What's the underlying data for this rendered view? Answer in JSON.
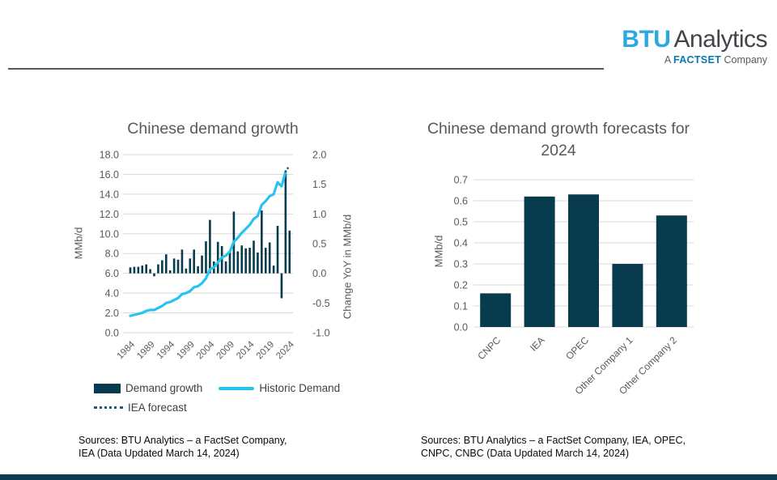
{
  "logo": {
    "btu": "BTU",
    "analytics": "Analytics",
    "tagline_prefix": "A",
    "tagline_brand": "FACTSET",
    "tagline_suffix": "Company"
  },
  "colors": {
    "bar_dark_teal": "#073B4D",
    "historic_line_cyan": "#29C3F0",
    "forecast_dots_navy": "#1E5A78",
    "title_gray": "#595959",
    "gridline_gray": "#D9D9D9",
    "logo_blue": "#29A9E0",
    "factset_blue": "#0977B5",
    "footer_accent": "#0B3C4F"
  },
  "sources_left": {
    "line1": "Sources: BTU Analytics – a FactSet Company,",
    "line2": "IEA (Data Updated March 14, 2024)"
  },
  "sources_right": {
    "line1": "Sources: BTU Analytics – a FactSet Company, IEA, OPEC,",
    "line2": "CNPC, CNBC (Data Updated March 14, 2024)"
  },
  "chart_data": [
    {
      "type": "bar",
      "subtype": "combo-bar-line-dual-axis",
      "title": "Chinese demand growth",
      "x": [
        1984,
        1985,
        1986,
        1987,
        1988,
        1989,
        1990,
        1991,
        1992,
        1993,
        1994,
        1995,
        1996,
        1997,
        1998,
        1999,
        2000,
        2001,
        2002,
        2003,
        2004,
        2005,
        2006,
        2007,
        2008,
        2009,
        2010,
        2011,
        2012,
        2013,
        2014,
        2015,
        2016,
        2017,
        2018,
        2019,
        2020,
        2021,
        2022,
        2023,
        2024
      ],
      "x_tick_labels": [
        "1984",
        "1989",
        "1994",
        "1999",
        "2004",
        "2009",
        "2014",
        "2019",
        "2024"
      ],
      "left_axis": {
        "label": "MMb/d",
        "min": 0.0,
        "max": 18.0,
        "step": 2.0
      },
      "right_axis": {
        "label": "Change YoY in MMb/d",
        "min": -1.0,
        "max": 2.0,
        "step": 0.5
      },
      "grid": true,
      "legend_position": "bottom",
      "series": [
        {
          "name": "Demand growth",
          "type": "bar",
          "axis": "right",
          "values": [
            0.1,
            0.11,
            0.11,
            0.13,
            0.15,
            0.07,
            -0.05,
            0.15,
            0.22,
            0.32,
            0.05,
            0.25,
            0.23,
            0.4,
            0.08,
            0.25,
            0.4,
            0.12,
            0.3,
            0.54,
            0.9,
            0.2,
            0.53,
            0.46,
            0.2,
            0.37,
            1.04,
            0.37,
            0.47,
            0.42,
            0.43,
            0.55,
            0.35,
            1.06,
            0.43,
            0.52,
            0.13,
            0.8,
            -0.42,
            1.72,
            0.72
          ]
        },
        {
          "name": "Historic Demand",
          "type": "line",
          "axis": "left",
          "values": [
            1.7,
            1.8,
            1.9,
            2.0,
            2.2,
            2.3,
            2.3,
            2.5,
            2.7,
            3.0,
            3.1,
            3.3,
            3.5,
            3.9,
            4.0,
            4.2,
            4.6,
            4.7,
            5.0,
            5.5,
            6.4,
            6.6,
            7.1,
            7.6,
            7.8,
            8.2,
            9.2,
            9.6,
            10.1,
            10.5,
            10.9,
            11.5,
            11.8,
            12.9,
            13.3,
            13.8,
            14.0,
            15.2,
            14.8,
            16.3,
            null
          ]
        },
        {
          "name": "IEA forecast",
          "type": "dotted-line",
          "axis": "left",
          "x": [
            2023,
            2024
          ],
          "values": [
            16.3,
            16.9
          ]
        }
      ]
    },
    {
      "type": "bar",
      "title": "Chinese demand growth forecasts for 2024",
      "categories": [
        "CNPC",
        "IEA",
        "OPEC",
        "Other Company 1",
        "Other Company 2"
      ],
      "values": [
        0.16,
        0.62,
        0.63,
        0.3,
        0.53
      ],
      "xlabel": "",
      "ylabel": "MMb/d",
      "ylim": [
        0.0,
        0.7
      ],
      "ytick_step": 0.1,
      "grid": true
    }
  ]
}
